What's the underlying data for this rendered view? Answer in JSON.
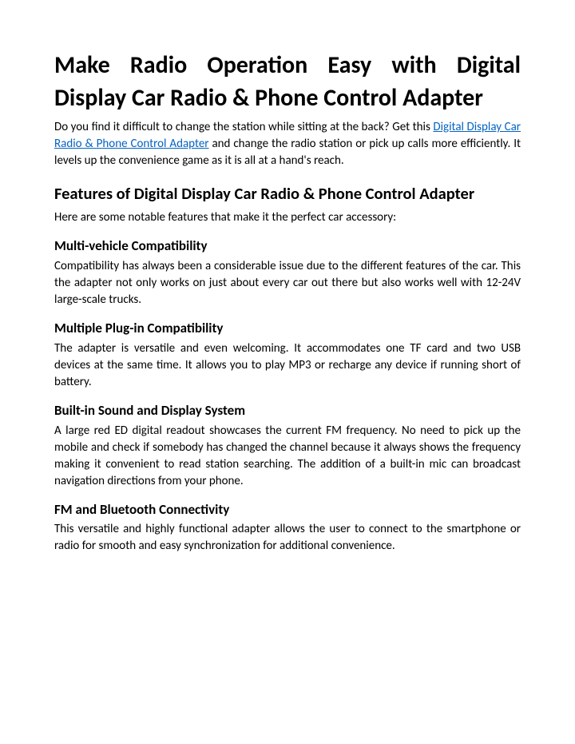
{
  "title": "Make Radio Operation Easy with Digital Display Car Radio & Phone Control Adapter",
  "intro_pre": "Do you find it difficult to change the station while sitting at the back? Get this ",
  "intro_link": "Digital Display Car Radio & Phone Control Adapter",
  "intro_post": " and change the radio station or pick up calls more efficiently. It levels up the convenience game as it is all at a hand's reach.",
  "features_heading": "Features of Digital Display Car Radio & Phone Control Adapter",
  "features_lead": "Here are some notable features that make it the perfect car accessory:",
  "sections": [
    {
      "heading": "Multi-vehicle Compatibility",
      "body": "Compatibility has always been a considerable issue due to the different features of the car. This the adapter not only works on just about every car out there but also works well with 12-24V large-scale trucks."
    },
    {
      "heading": "Multiple Plug-in Compatibility",
      "body": "The adapter is versatile and even welcoming. It accommodates one TF card and two USB devices at the same time. It allows you to play MP3 or recharge any device if running short of battery."
    },
    {
      "heading": "Built-in Sound and Display System",
      "body": "A large red ED digital readout showcases the current FM frequency. No need to pick up the mobile and check if somebody has changed the channel because it always shows the frequency making it convenient to read station searching. The addition of a built-in mic can broadcast navigation directions from your phone."
    },
    {
      "heading": "FM and Bluetooth Connectivity",
      "body": "This versatile and highly functional adapter allows the user to connect to the smartphone or radio for smooth and easy synchronization for additional convenience."
    }
  ],
  "colors": {
    "link": "#0563c1",
    "text": "#000000",
    "background": "#ffffff"
  }
}
